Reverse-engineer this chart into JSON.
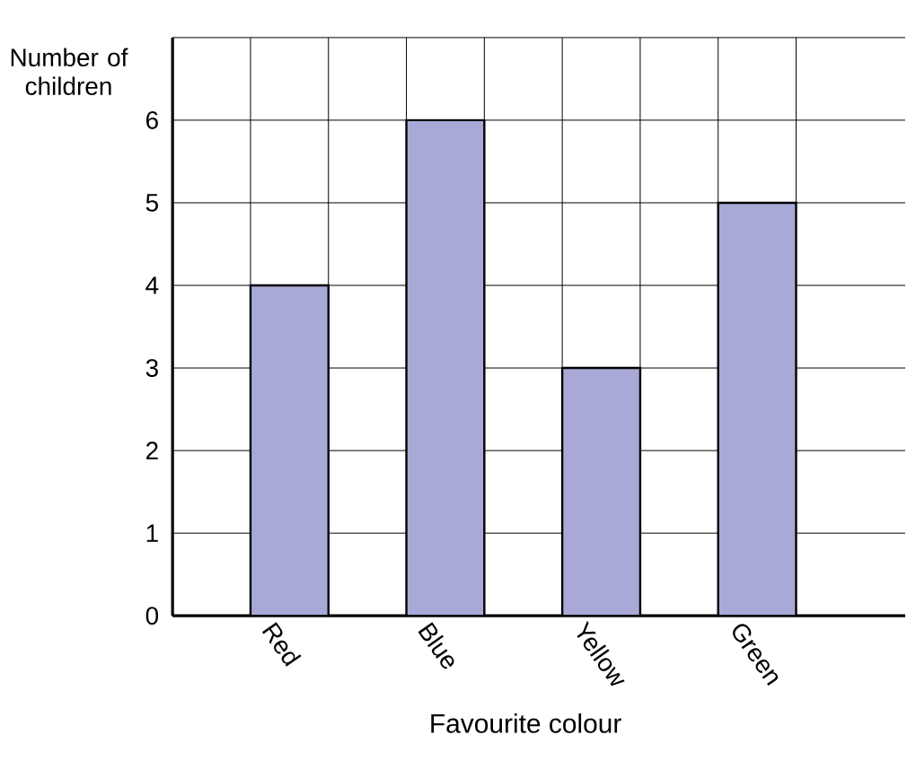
{
  "chart_data": {
    "type": "bar",
    "xlabel": "Favourite colour",
    "ylabel": "Number of children",
    "categories": [
      "Red",
      "Blue",
      "Yellow",
      "Green"
    ],
    "values": [
      4,
      6,
      3,
      5
    ],
    "color": "#a9a9d8",
    "ylim": [
      0,
      7
    ],
    "yticks": [
      0,
      1,
      2,
      3,
      4,
      5,
      6,
      {
        "value": 7,
        "label": null
      }
    ],
    "grid": true,
    "legend": false
  }
}
